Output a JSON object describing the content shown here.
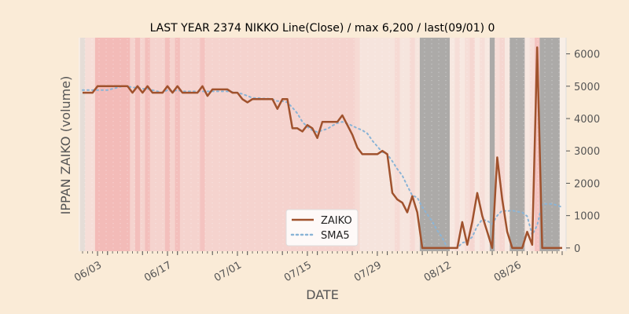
{
  "chart_data": {
    "type": "line",
    "title": "LAST YEAR 2374 NIKKO Line(Close) / max 6,200 / last(09/01) 0",
    "xlabel": "DATE",
    "ylabel": "IPPAN ZAIKO (volume)",
    "x_start": "2023-05-31",
    "xtick_labels": [
      "06/03",
      "06/17",
      "07/01",
      "07/15",
      "07/29",
      "08/12",
      "08/26"
    ],
    "ylim": [
      -100,
      6500
    ],
    "yticks": [
      0,
      1000,
      2000,
      3000,
      4000,
      5000,
      6000
    ],
    "legend_position": "lower-center",
    "colors": {
      "background": "#faebd7",
      "zaiko": "#a0522d",
      "sma5": "#8ab4d6",
      "shade_red": "#f0a0a0",
      "shade_gray": "#999999"
    },
    "series": [
      {
        "name": "ZAIKO",
        "style": "solid",
        "values": [
          4800,
          4800,
          4800,
          5000,
          5000,
          5000,
          5000,
          5000,
          5000,
          5000,
          4800,
          5000,
          4800,
          5000,
          4800,
          4800,
          4800,
          5000,
          4800,
          5000,
          4800,
          4800,
          4800,
          4800,
          5000,
          4700,
          4900,
          4900,
          4900,
          4900,
          4800,
          4800,
          4600,
          4500,
          4600,
          4600,
          4600,
          4600,
          4600,
          4300,
          4600,
          4600,
          3700,
          3700,
          3600,
          3800,
          3700,
          3400,
          3900,
          3900,
          3900,
          3900,
          4100,
          3800,
          3500,
          3100,
          2900,
          2900,
          2900,
          2900,
          3000,
          2900,
          1700,
          1500,
          1400,
          1100,
          1600,
          1100,
          0,
          0,
          0,
          0,
          0,
          0,
          0,
          0,
          800,
          100,
          800,
          1700,
          1000,
          500,
          0,
          2800,
          1500,
          500,
          0,
          0,
          0,
          500,
          100,
          6200,
          0,
          0,
          0,
          0,
          0
        ]
      },
      {
        "name": "SMA5",
        "style": "dotted",
        "values": [
          4880,
          4880,
          4880,
          4880,
          4880,
          4880,
          4920,
          4960,
          5000,
          5000,
          4960,
          4960,
          4920,
          4920,
          4880,
          4840,
          4800,
          4880,
          4840,
          4880,
          4840,
          4840,
          4840,
          4840,
          4840,
          4840,
          4840,
          4840,
          4840,
          4840,
          4820,
          4800,
          4760,
          4700,
          4640,
          4640,
          4620,
          4620,
          4600,
          4540,
          4540,
          4500,
          4340,
          4160,
          3900,
          3740,
          3640,
          3580,
          3640,
          3680,
          3780,
          3860,
          3900,
          3840,
          3780,
          3700,
          3640,
          3540,
          3320,
          3140,
          2960,
          2900,
          2680,
          2440,
          2240,
          1920,
          1620,
          1560,
          1260,
          1040,
          820,
          540,
          320,
          0,
          0,
          0,
          160,
          200,
          340,
          680,
          880,
          840,
          740,
          1000,
          1160,
          1140,
          1160,
          1120,
          1100,
          980,
          400,
          700,
          1360,
          1360,
          1360,
          1320,
          1260
        ]
      }
    ],
    "shaded_bands": [
      {
        "start": 0,
        "end": 1,
        "color": "gray",
        "alpha": 0.2
      },
      {
        "start": 1,
        "end": 3,
        "color": "red",
        "alpha": 0.2
      },
      {
        "start": 3,
        "end": 10,
        "color": "red",
        "alpha": 0.65
      },
      {
        "start": 10,
        "end": 11,
        "color": "red",
        "alpha": 0.35
      },
      {
        "start": 11,
        "end": 12,
        "color": "red",
        "alpha": 0.6
      },
      {
        "start": 12,
        "end": 13,
        "color": "red",
        "alpha": 0.35
      },
      {
        "start": 13,
        "end": 14,
        "color": "red",
        "alpha": 0.6
      },
      {
        "start": 14,
        "end": 17,
        "color": "red",
        "alpha": 0.35
      },
      {
        "start": 17,
        "end": 18,
        "color": "red",
        "alpha": 0.6
      },
      {
        "start": 18,
        "end": 19,
        "color": "red",
        "alpha": 0.35
      },
      {
        "start": 19,
        "end": 20,
        "color": "red",
        "alpha": 0.6
      },
      {
        "start": 20,
        "end": 24,
        "color": "red",
        "alpha": 0.35
      },
      {
        "start": 24,
        "end": 25,
        "color": "red",
        "alpha": 0.55
      },
      {
        "start": 25,
        "end": 55,
        "color": "red",
        "alpha": 0.35
      },
      {
        "start": 55,
        "end": 56,
        "color": "red",
        "alpha": 0.25
      },
      {
        "start": 56,
        "end": 63,
        "color": "red",
        "alpha": 0.12
      },
      {
        "start": 63,
        "end": 64,
        "color": "red",
        "alpha": 0.25
      },
      {
        "start": 64,
        "end": 66,
        "color": "red",
        "alpha": 0.1
      },
      {
        "start": 66,
        "end": 67,
        "color": "red",
        "alpha": 0.25
      },
      {
        "start": 67,
        "end": 68,
        "color": "red",
        "alpha": 0.1
      },
      {
        "start": 68,
        "end": 74,
        "color": "gray",
        "alpha": 0.8
      },
      {
        "start": 74,
        "end": 75,
        "color": "red",
        "alpha": 0.08
      },
      {
        "start": 75,
        "end": 76,
        "color": "red",
        "alpha": 0.2
      },
      {
        "start": 76,
        "end": 77,
        "color": "red",
        "alpha": 0.08
      },
      {
        "start": 77,
        "end": 78,
        "color": "red",
        "alpha": 0.2
      },
      {
        "start": 78,
        "end": 79,
        "color": "red",
        "alpha": 0.3
      },
      {
        "start": 79,
        "end": 80,
        "color": "red",
        "alpha": 0.08
      },
      {
        "start": 80,
        "end": 81,
        "color": "red",
        "alpha": 0.2
      },
      {
        "start": 81,
        "end": 82,
        "color": "red",
        "alpha": 0.08
      },
      {
        "start": 82,
        "end": 83,
        "color": "gray",
        "alpha": 0.8
      },
      {
        "start": 83,
        "end": 84,
        "color": "red",
        "alpha": 0.2
      },
      {
        "start": 84,
        "end": 85,
        "color": "red",
        "alpha": 0.3
      },
      {
        "start": 85,
        "end": 86,
        "color": "red",
        "alpha": 0.08
      },
      {
        "start": 86,
        "end": 89,
        "color": "gray",
        "alpha": 0.8
      },
      {
        "start": 89,
        "end": 90,
        "color": "red",
        "alpha": 0.08
      },
      {
        "start": 90,
        "end": 91,
        "color": "red",
        "alpha": 0.2
      },
      {
        "start": 91,
        "end": 92,
        "color": "red",
        "alpha": 0.55
      },
      {
        "start": 92,
        "end": 96,
        "color": "gray",
        "alpha": 0.8
      }
    ]
  }
}
